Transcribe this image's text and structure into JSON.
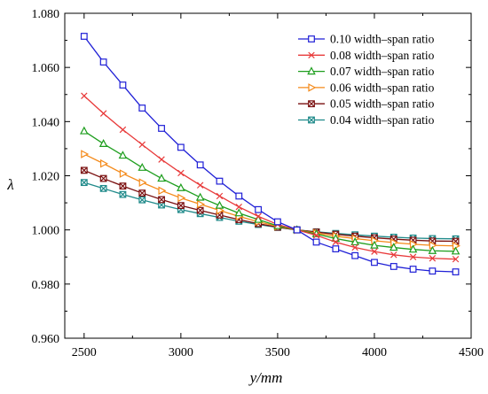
{
  "chart_data": {
    "type": "line",
    "xlabel": "y/mm",
    "ylabel": "λ",
    "xlim": [
      2400,
      4500
    ],
    "ylim": [
      0.96,
      1.08
    ],
    "x_ticks": [
      2500,
      3000,
      3500,
      4000,
      4500
    ],
    "y_ticks": [
      0.96,
      0.98,
      1.0,
      1.02,
      1.04,
      1.06,
      1.08
    ],
    "x_tick_labels": [
      "2500",
      "3000",
      "3500",
      "4000",
      "4500"
    ],
    "y_tick_labels": [
      "0.960",
      "0.980",
      "1.000",
      "1.020",
      "1.040",
      "1.060",
      "1.080"
    ],
    "grid": false,
    "legend_position": "top-right",
    "x": [
      2500,
      2600,
      2700,
      2800,
      2900,
      3000,
      3100,
      3200,
      3300,
      3400,
      3500,
      3600,
      3700,
      3800,
      3900,
      4000,
      4100,
      4200,
      4300,
      4420
    ],
    "series": [
      {
        "name": "0.10 width–span ratio",
        "color": "#1f1fd6",
        "marker": "square",
        "values": [
          1.0715,
          1.062,
          1.0535,
          1.045,
          1.0375,
          1.0305,
          1.024,
          1.018,
          1.0125,
          1.0075,
          1.003,
          1.0,
          0.9955,
          0.993,
          0.9905,
          0.988,
          0.9865,
          0.9855,
          0.9848,
          0.9845
        ]
      },
      {
        "name": "0.08 width–span ratio",
        "color": "#e83a3a",
        "marker": "x",
        "values": [
          1.0495,
          1.043,
          1.037,
          1.0315,
          1.026,
          1.021,
          1.0165,
          1.0125,
          1.0085,
          1.005,
          1.002,
          1.0,
          0.998,
          0.9955,
          0.9935,
          0.992,
          0.9908,
          0.99,
          0.9895,
          0.9892
        ]
      },
      {
        "name": "0.07 width–span ratio",
        "color": "#1e9e1e",
        "marker": "triangle",
        "values": [
          1.0365,
          1.0318,
          1.0275,
          1.023,
          1.019,
          1.0155,
          1.012,
          1.009,
          1.0062,
          1.0038,
          1.0015,
          1.0,
          0.9985,
          0.9968,
          0.9955,
          0.9943,
          0.9935,
          0.9928,
          0.9923,
          0.9921
        ]
      },
      {
        "name": "0.06 width–span ratio",
        "color": "#f48a1a",
        "marker": "triangle-right",
        "values": [
          1.028,
          1.0245,
          1.0208,
          1.0175,
          1.0145,
          1.0118,
          1.0095,
          1.0072,
          1.005,
          1.003,
          1.0013,
          1.0,
          0.9988,
          0.9977,
          0.9968,
          0.996,
          0.9953,
          0.9947,
          0.9943,
          0.9941
        ]
      },
      {
        "name": "0.05 width–span ratio",
        "color": "#7a0f0f",
        "marker": "x-box",
        "values": [
          1.022,
          1.019,
          1.0162,
          1.0136,
          1.0112,
          1.009,
          1.0072,
          1.0055,
          1.0038,
          1.0023,
          1.001,
          1.0,
          0.9992,
          0.9984,
          0.9977,
          0.9971,
          0.9966,
          0.9962,
          0.9959,
          0.9958
        ]
      },
      {
        "name": "0.04 width–span ratio",
        "color": "#1f8a8a",
        "marker": "x-box",
        "values": [
          1.0175,
          1.0153,
          1.0131,
          1.0111,
          1.0092,
          1.0075,
          1.006,
          1.0046,
          1.0032,
          1.002,
          1.0009,
          1.0,
          0.9993,
          0.9987,
          0.9982,
          0.9977,
          0.9973,
          0.997,
          0.9968,
          0.9967
        ]
      }
    ]
  }
}
